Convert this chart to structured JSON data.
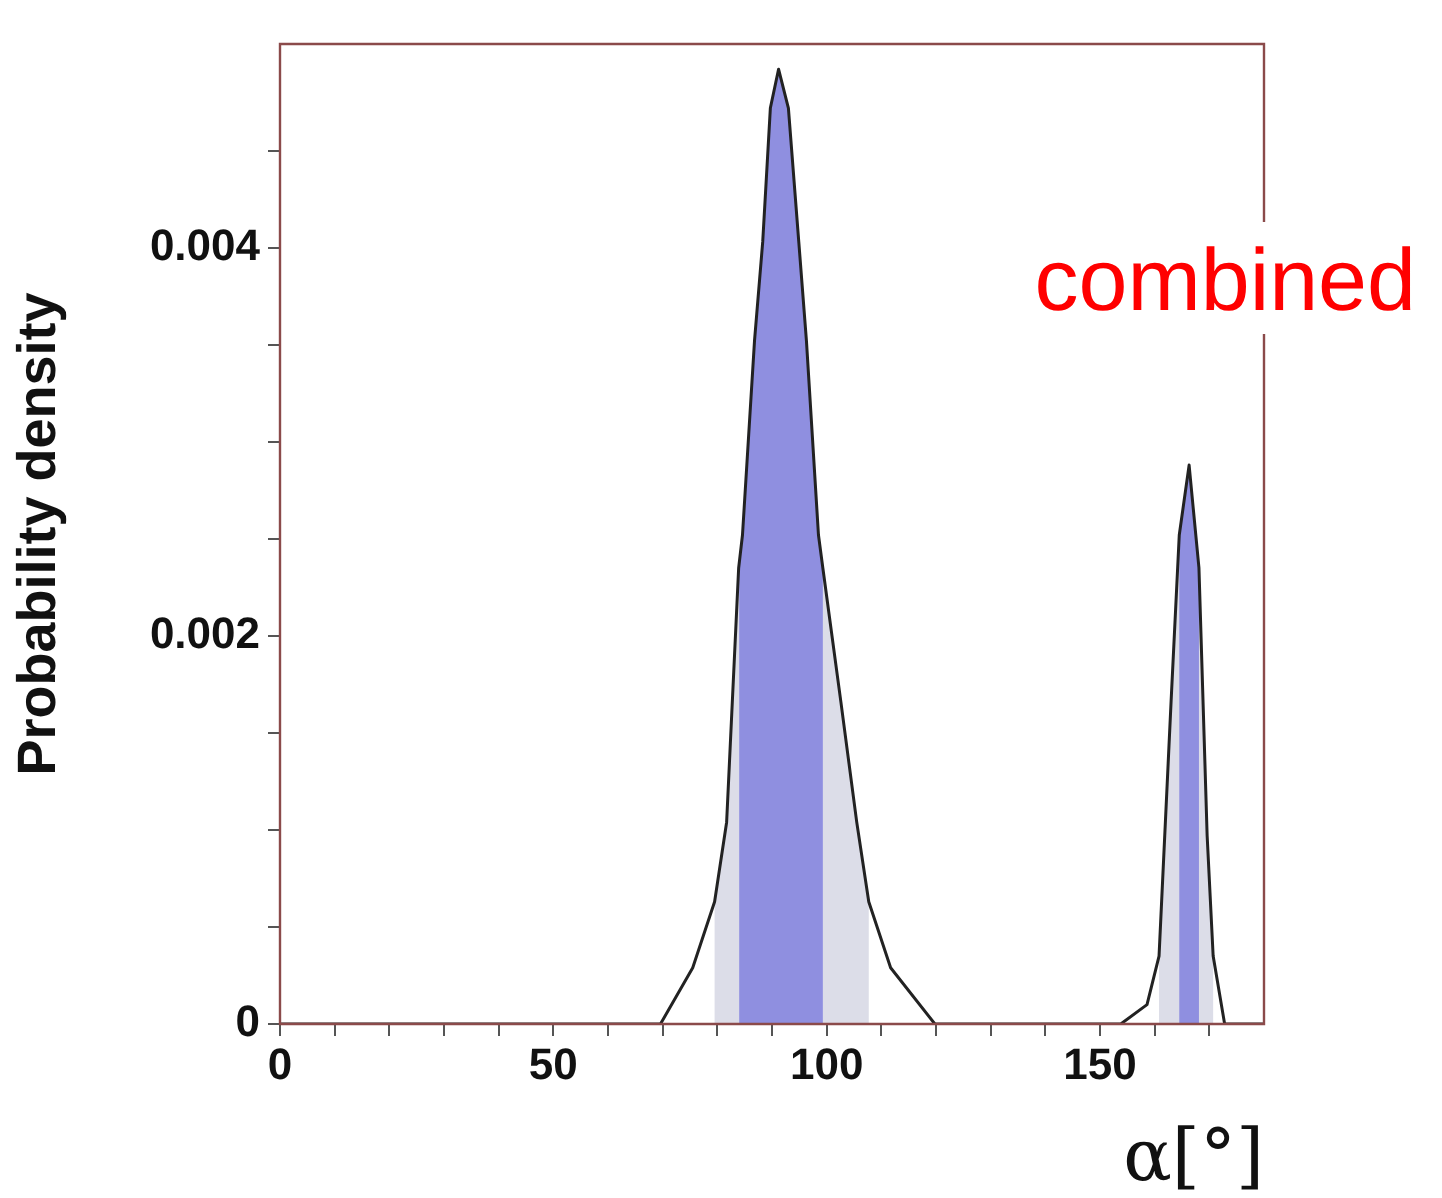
{
  "chart_data": {
    "type": "line",
    "xlabel": "α[°]",
    "ylabel": "Probability density",
    "annotations": [
      "combined"
    ],
    "series": [
      {
        "color": "#222222",
        "x": [
          0,
          69.6,
          75.5,
          79.5,
          81.7,
          83.9,
          84.6,
          86.8,
          88.3,
          89.7,
          91.2,
          93.0,
          94.9,
          96.3,
          98.5,
          99.3,
          102.6,
          105.5,
          107.7,
          111.7,
          119.8,
          153.8,
          158.6,
          160.8,
          163.0,
          164.5,
          166.3,
          168.1,
          169.6,
          170.7,
          172.8,
          180
        ],
        "values": [
          0,
          0,
          0.00029,
          0.00063,
          0.00104,
          0.00235,
          0.00252,
          0.00352,
          0.00403,
          0.00472,
          0.00492,
          0.00472,
          0.00403,
          0.00352,
          0.00252,
          0.00235,
          0.00166,
          0.00104,
          0.00063,
          0.00029,
          0,
          0,
          0.0001,
          0.00035,
          0.00166,
          0.00252,
          0.00288,
          0.00235,
          0.00097,
          0.00035,
          0,
          0
        ]
      }
    ],
    "bands": [
      {
        "axis": "x",
        "from": 79.5,
        "to": 107.7,
        "color": "#dcdde8"
      },
      {
        "axis": "x",
        "from": 84,
        "to": 99.3,
        "color": "#8f8fe0"
      },
      {
        "axis": "x",
        "from": 160.8,
        "to": 170.7,
        "color": "#dcdde8"
      },
      {
        "axis": "x",
        "from": 164.5,
        "to": 168.1,
        "color": "#8f8fe0"
      }
    ],
    "xlim": [
      0,
      180
    ],
    "xticks": [
      0,
      {
        "value": 10,
        "label": null
      },
      {
        "value": 20,
        "label": null
      },
      {
        "value": 30,
        "label": null
      },
      {
        "value": 40,
        "label": null
      },
      50,
      {
        "value": 60,
        "label": null
      },
      {
        "value": 70,
        "label": null
      },
      {
        "value": 80,
        "label": null
      },
      {
        "value": 90,
        "label": null
      },
      100,
      {
        "value": 110,
        "label": null
      },
      {
        "value": 120,
        "label": null
      },
      {
        "value": 130,
        "label": null
      },
      {
        "value": 140,
        "label": null
      },
      150,
      {
        "value": 160,
        "label": null
      },
      {
        "value": 170,
        "label": null
      }
    ],
    "ylim": [
      0,
      0.00505
    ],
    "yticks": [
      0,
      {
        "value": 0.0005,
        "label": null
      },
      {
        "value": 0.001,
        "label": null
      },
      {
        "value": 0.0015,
        "label": null
      },
      0.002,
      {
        "value": 0.0025,
        "label": null
      },
      {
        "value": 0.003,
        "label": null
      },
      {
        "value": 0.0035,
        "label": null
      },
      0.004,
      {
        "value": 0.0045,
        "label": null
      }
    ],
    "grid": false,
    "legend": false,
    "marker": "none",
    "line_style": "solid"
  }
}
